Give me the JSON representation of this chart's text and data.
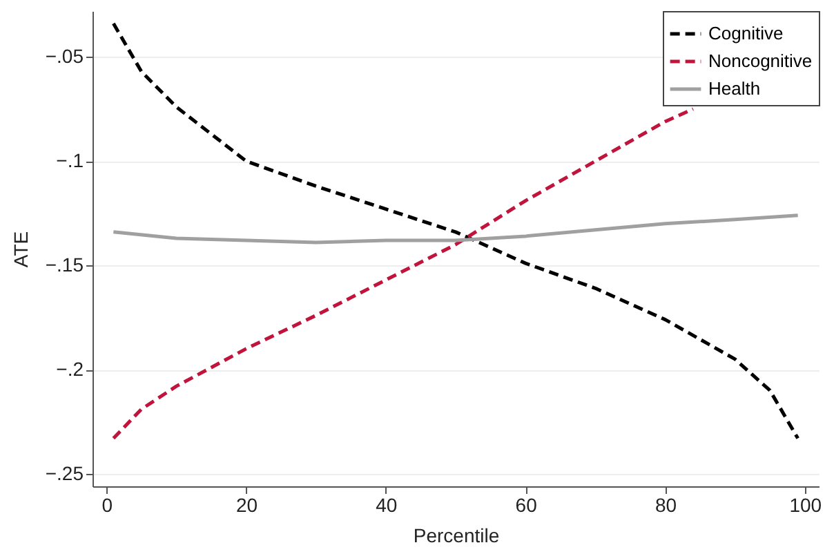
{
  "chart_data": {
    "type": "line",
    "xlabel": "Percentile",
    "ylabel": "ATE",
    "xlim": [
      -2,
      102
    ],
    "xticks": [
      0,
      20,
      40,
      60,
      80,
      100
    ],
    "ylim": [
      -0.256,
      -0.028
    ],
    "yticks": [
      {
        "value": -0.05,
        "label": "−.05"
      },
      {
        "value": -0.1,
        "label": "−.1"
      },
      {
        "value": -0.15,
        "label": "−.15"
      },
      {
        "value": -0.2,
        "label": "−.2"
      },
      {
        "value": -0.25,
        "label": "−.25"
      }
    ],
    "grid": "y",
    "legend": "top right",
    "marker": "none",
    "series": [
      {
        "name": "Cognitive",
        "color": "#000000",
        "line_style": "dashed",
        "x": [
          1,
          5,
          10,
          20,
          30,
          40,
          50,
          60,
          70,
          80,
          90,
          95,
          99
        ],
        "values": [
          -0.034,
          -0.057,
          -0.074,
          -0.1,
          -0.112,
          -0.123,
          -0.134,
          -0.149,
          -0.161,
          -0.176,
          -0.195,
          -0.21,
          -0.233
        ]
      },
      {
        "name": "Noncognitive",
        "color": "#c0143c",
        "line_style": "dashed",
        "x": [
          1,
          5,
          10,
          20,
          30,
          40,
          50,
          60,
          70,
          80,
          84
        ],
        "values": [
          -0.233,
          -0.219,
          -0.208,
          -0.19,
          -0.174,
          -0.157,
          -0.14,
          -0.119,
          -0.1,
          -0.081,
          -0.075
        ]
      },
      {
        "name": "Health",
        "color": "#a0a0a0",
        "line_style": "solid",
        "x": [
          1,
          10,
          20,
          30,
          40,
          50,
          60,
          70,
          80,
          90,
          99
        ],
        "values": [
          -0.134,
          -0.137,
          -0.138,
          -0.139,
          -0.138,
          -0.138,
          -0.136,
          -0.133,
          -0.13,
          -0.128,
          -0.126
        ]
      }
    ]
  }
}
